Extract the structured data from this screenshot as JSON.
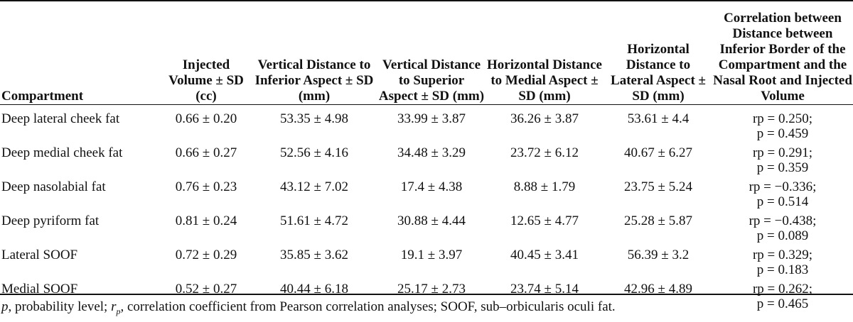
{
  "table": {
    "headers": [
      "Compartment",
      "Injected Volume ± SD (cc)",
      "Vertical Distance to Inferior Aspect ± SD (mm)",
      "Vertical Distance to Superior Aspect ± SD (mm)",
      "Horizontal Distance to Medial Aspect ± SD (mm)",
      "Horizontal Distance to Lateral Aspect ± SD (mm)",
      "Correlation between Distance between Inferior Border of the Compartment and the Nasal Root and Injected Volume"
    ],
    "rows": [
      {
        "compartment": "Deep lateral cheek fat",
        "volume": "0.66 ± 0.20",
        "inferior": "53.35 ± 4.98",
        "superior": "33.99 ± 3.87",
        "medial": "36.26 ± 3.87",
        "lateral": "53.61 ± 4.4",
        "corr_r": "rp = 0.250;",
        "corr_p": "p = 0.459"
      },
      {
        "compartment": "Deep medial cheek fat",
        "volume": "0.66 ± 0.27",
        "inferior": "52.56 ± 4.16",
        "superior": "34.48 ± 3.29",
        "medial": "23.72 ± 6.12",
        "lateral": "40.67 ± 6.27",
        "corr_r": "rp = 0.291;",
        "corr_p": "p = 0.359"
      },
      {
        "compartment": "Deep nasolabial fat",
        "volume": "0.76 ± 0.23",
        "inferior": "43.12 ± 7.02",
        "superior": "17.4 ± 4.38",
        "medial": "8.88 ± 1.79",
        "lateral": "23.75 ± 5.24",
        "corr_r": "rp = −0.336;",
        "corr_p": "p = 0.514"
      },
      {
        "compartment": "Deep pyriform fat",
        "volume": "0.81 ± 0.24",
        "inferior": "51.61 ± 4.72",
        "superior": "30.88 ± 4.44",
        "medial": "12.65 ± 4.77",
        "lateral": "25.28 ± 5.87",
        "corr_r": "rp = −0.438;",
        "corr_p": "p = 0.089"
      },
      {
        "compartment": "Lateral SOOF",
        "volume": "0.72 ± 0.29",
        "inferior": "35.85 ± 3.62",
        "superior": "19.1 ± 3.97",
        "medial": "40.45 ± 3.41",
        "lateral": "56.39 ± 3.2",
        "corr_r": "rp = 0.329;",
        "corr_p": "p = 0.183"
      },
      {
        "compartment": "Medial SOOF",
        "volume": "0.52 ± 0.27",
        "inferior": "40.44 ± 6.18",
        "superior": "25.17 ± 2.73",
        "medial": "23.74 ± 5.14",
        "lateral": "42.96 ± 4.89",
        "corr_r": "rp = 0.262;",
        "corr_p": "p = 0.465"
      }
    ]
  },
  "footnote": {
    "p_symbol": "p",
    "p_text": ", probability level; ",
    "r_symbol": "r",
    "r_sub": "p",
    "r_text": ", correlation coefficient from Pearson correlation analyses; SOOF, sub–orbicularis oculi fat."
  }
}
